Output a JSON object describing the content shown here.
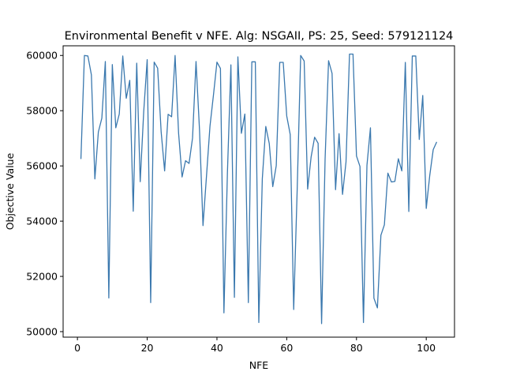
{
  "chart_data": {
    "type": "line",
    "title": "Environmental Benefit v NFE. Alg: NSGAII, PS: 25, Seed: 579121124",
    "xlabel": "NFE",
    "ylabel": "Objective Value",
    "xlim": [
      -4.1,
      108.1
    ],
    "ylim": [
      49800,
      60350
    ],
    "xticks": [
      0,
      20,
      40,
      60,
      80,
      100
    ],
    "yticks": [
      50000,
      52000,
      54000,
      56000,
      58000,
      60000
    ],
    "grid": false,
    "line_color": "#3a78ae",
    "series": [
      {
        "x": [
          1,
          2,
          3,
          4,
          5,
          6,
          7,
          8,
          9,
          10,
          11,
          12,
          13,
          14,
          15,
          16,
          17,
          18,
          19,
          20,
          21,
          22,
          23,
          24,
          25,
          26,
          27,
          28,
          29,
          30,
          31,
          32,
          33,
          34,
          35,
          36,
          37,
          38,
          39,
          40,
          41,
          42,
          43,
          44,
          45,
          46,
          47,
          48,
          49,
          50,
          51,
          52,
          53,
          54,
          55,
          56,
          57,
          58,
          59,
          60,
          61,
          62,
          63,
          64,
          65,
          66,
          67,
          68,
          69,
          70,
          71,
          72,
          73,
          74,
          75,
          76,
          77,
          78,
          79,
          80,
          81,
          82,
          83,
          84,
          85,
          86,
          87,
          88,
          89,
          90,
          91,
          92,
          93,
          94,
          95,
          96,
          97,
          98,
          99,
          100,
          101,
          102,
          103
        ],
        "values": [
          56250,
          60000,
          59980,
          59300,
          55530,
          57230,
          57730,
          59780,
          51220,
          59670,
          57380,
          57880,
          59980,
          58450,
          59100,
          54360,
          59720,
          55430,
          57960,
          59850,
          51050,
          59760,
          59540,
          57240,
          55820,
          57870,
          57780,
          60000,
          57190,
          55600,
          56190,
          56090,
          57010,
          59780,
          57300,
          53840,
          55630,
          57440,
          58570,
          59760,
          59530,
          50680,
          55740,
          59660,
          51240,
          59950,
          57180,
          57880,
          51050,
          59770,
          59770,
          50330,
          55530,
          57430,
          56810,
          55250,
          56010,
          59750,
          59750,
          57810,
          57140,
          50800,
          55140,
          60000,
          59800,
          55160,
          56330,
          57040,
          56820,
          50290,
          56240,
          59810,
          59350,
          55140,
          57170,
          54970,
          56150,
          60050,
          60050,
          56360,
          55980,
          50330,
          56020,
          57380,
          51210,
          50860,
          53490,
          53870,
          55740,
          55420,
          55440,
          56260,
          55820,
          59750,
          54350,
          59980,
          59980,
          56960,
          58550,
          54460,
          55650,
          56590,
          56870
        ]
      }
    ]
  }
}
